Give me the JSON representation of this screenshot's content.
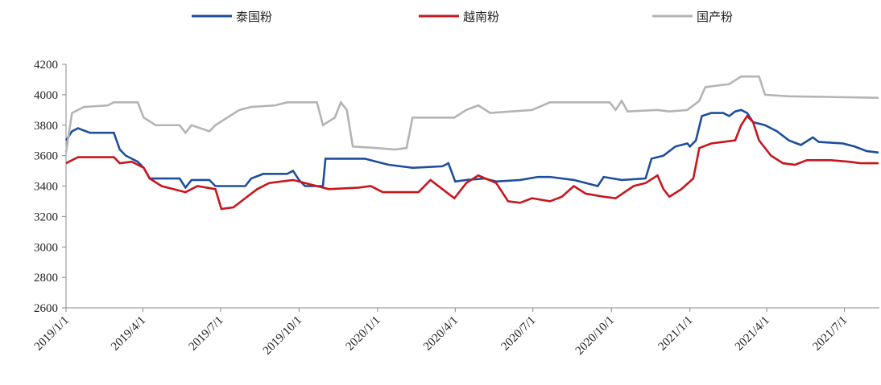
{
  "chart_data": {
    "type": "line",
    "xlim": [
      "2019/1/1",
      "2021/8/11"
    ],
    "xticks": [
      "2019/1/1",
      "2019/4/1",
      "2019/7/1",
      "2019/10/1",
      "2020/1/1",
      "2020/4/1",
      "2020/7/1",
      "2020/10/1",
      "2021/1/1",
      "2021/4/1",
      "2021/7/1"
    ],
    "ylim": [
      2600,
      4200
    ],
    "yticks": [
      2600,
      2800,
      3000,
      3200,
      3400,
      3600,
      3800,
      4000,
      4200
    ],
    "legend": "top",
    "series": [
      {
        "name": "泰国粉",
        "color": "#1f4e9c",
        "x": [
          "2019/1/1",
          "2019/1/8",
          "2019/1/15",
          "2019/1/29",
          "2019/2/26",
          "2019/3/5",
          "2019/3/12",
          "2019/3/26",
          "2019/4/2",
          "2019/4/9",
          "2019/5/14",
          "2019/5/21",
          "2019/5/28",
          "2019/6/18",
          "2019/6/25",
          "2019/7/30",
          "2019/8/6",
          "2019/8/20",
          "2019/9/17",
          "2019/9/24",
          "2019/10/1",
          "2019/10/8",
          "2019/10/29",
          "2019/11/1",
          "2019/12/17",
          "2019/12/31",
          "2020/1/14",
          "2020/2/11",
          "2020/3/17",
          "2020/3/24",
          "2020/4/1",
          "2020/4/14",
          "2020/5/5",
          "2020/5/19",
          "2020/6/16",
          "2020/7/7",
          "2020/7/21",
          "2020/8/18",
          "2020/9/15",
          "2020/9/22",
          "2020/10/13",
          "2020/11/10",
          "2020/11/17",
          "2020/12/1",
          "2020/12/15",
          "2020/12/29",
          "2021/1/1",
          "2021/1/8",
          "2021/1/15",
          "2021/1/26",
          "2021/2/9",
          "2021/2/16",
          "2021/2/23",
          "2021/3/2",
          "2021/3/9",
          "2021/3/16",
          "2021/3/30",
          "2021/4/13",
          "2021/4/27",
          "2021/5/11",
          "2021/5/25",
          "2021/6/1",
          "2021/6/29",
          "2021/7/13",
          "2021/7/27",
          "2021/8/10"
        ],
        "values": [
          3700,
          3760,
          3780,
          3750,
          3750,
          3640,
          3600,
          3560,
          3520,
          3450,
          3450,
          3390,
          3440,
          3440,
          3400,
          3400,
          3450,
          3480,
          3480,
          3500,
          3440,
          3400,
          3400,
          3580,
          3580,
          3560,
          3540,
          3520,
          3530,
          3550,
          3430,
          3440,
          3450,
          3430,
          3440,
          3460,
          3460,
          3440,
          3400,
          3460,
          3440,
          3450,
          3580,
          3600,
          3660,
          3680,
          3660,
          3700,
          3860,
          3880,
          3880,
          3860,
          3890,
          3900,
          3880,
          3820,
          3800,
          3760,
          3700,
          3670,
          3720,
          3690,
          3680,
          3660,
          3630,
          3620
        ]
      },
      {
        "name": "越南粉",
        "color": "#c8161d",
        "x": [
          "2019/1/1",
          "2019/1/15",
          "2019/2/26",
          "2019/3/5",
          "2019/3/19",
          "2019/4/2",
          "2019/4/9",
          "2019/4/23",
          "2019/5/21",
          "2019/6/4",
          "2019/6/25",
          "2019/7/2",
          "2019/7/16",
          "2019/7/30",
          "2019/8/13",
          "2019/8/27",
          "2019/9/10",
          "2019/9/24",
          "2019/10/8",
          "2019/11/5",
          "2019/12/10",
          "2019/12/24",
          "2020/1/7",
          "2020/2/18",
          "2020/3/3",
          "2020/3/17",
          "2020/3/31",
          "2020/4/14",
          "2020/4/28",
          "2020/5/19",
          "2020/6/2",
          "2020/6/16",
          "2020/6/30",
          "2020/7/21",
          "2020/8/4",
          "2020/8/18",
          "2020/9/1",
          "2020/9/22",
          "2020/10/6",
          "2020/10/27",
          "2020/11/10",
          "2020/11/24",
          "2020/12/1",
          "2020/12/8",
          "2020/12/22",
          "2021/1/5",
          "2021/1/12",
          "2021/1/26",
          "2021/2/23",
          "2021/3/2",
          "2021/3/9",
          "2021/3/16",
          "2021/3/23",
          "2021/4/6",
          "2021/4/20",
          "2021/5/4",
          "2021/5/18",
          "2021/6/15",
          "2021/7/6",
          "2021/7/20",
          "2021/8/10"
        ],
        "values": [
          3550,
          3590,
          3590,
          3550,
          3560,
          3520,
          3450,
          3400,
          3360,
          3400,
          3380,
          3250,
          3260,
          3320,
          3380,
          3420,
          3430,
          3440,
          3420,
          3380,
          3390,
          3400,
          3360,
          3360,
          3440,
          3380,
          3320,
          3420,
          3470,
          3420,
          3300,
          3290,
          3320,
          3300,
          3330,
          3400,
          3350,
          3330,
          3320,
          3400,
          3420,
          3470,
          3380,
          3330,
          3380,
          3450,
          3650,
          3680,
          3700,
          3800,
          3860,
          3820,
          3700,
          3600,
          3550,
          3540,
          3570,
          3570,
          3560,
          3550,
          3550
        ]
      },
      {
        "name": "国产粉",
        "color": "#b4b4b4",
        "x": [
          "2019/1/1",
          "2019/1/8",
          "2019/1/22",
          "2019/2/19",
          "2019/2/26",
          "2019/3/26",
          "2019/4/2",
          "2019/4/16",
          "2019/5/14",
          "2019/5/21",
          "2019/5/28",
          "2019/6/18",
          "2019/6/25",
          "2019/7/9",
          "2019/7/23",
          "2019/8/6",
          "2019/9/3",
          "2019/9/17",
          "2019/10/22",
          "2019/10/29",
          "2019/11/12",
          "2019/11/19",
          "2019/11/26",
          "2019/12/3",
          "2019/12/31",
          "2020/1/21",
          "2020/2/4",
          "2020/2/11",
          "2020/3/31",
          "2020/4/14",
          "2020/4/28",
          "2020/5/12",
          "2020/6/30",
          "2020/7/21",
          "2020/9/29",
          "2020/10/6",
          "2020/10/13",
          "2020/10/20",
          "2020/11/24",
          "2020/12/8",
          "2020/12/29",
          "2021/1/12",
          "2021/1/19",
          "2021/2/16",
          "2021/3/2",
          "2021/3/23",
          "2021/3/30",
          "2021/4/27",
          "2021/8/10"
        ],
        "values": [
          3620,
          3880,
          3920,
          3930,
          3950,
          3950,
          3850,
          3800,
          3800,
          3750,
          3800,
          3760,
          3800,
          3850,
          3900,
          3920,
          3930,
          3950,
          3950,
          3800,
          3850,
          3950,
          3900,
          3660,
          3650,
          3640,
          3650,
          3850,
          3850,
          3900,
          3930,
          3880,
          3900,
          3950,
          3950,
          3900,
          3960,
          3890,
          3900,
          3890,
          3900,
          3960,
          4050,
          4070,
          4120,
          4120,
          4000,
          3990,
          3980
        ]
      }
    ]
  }
}
